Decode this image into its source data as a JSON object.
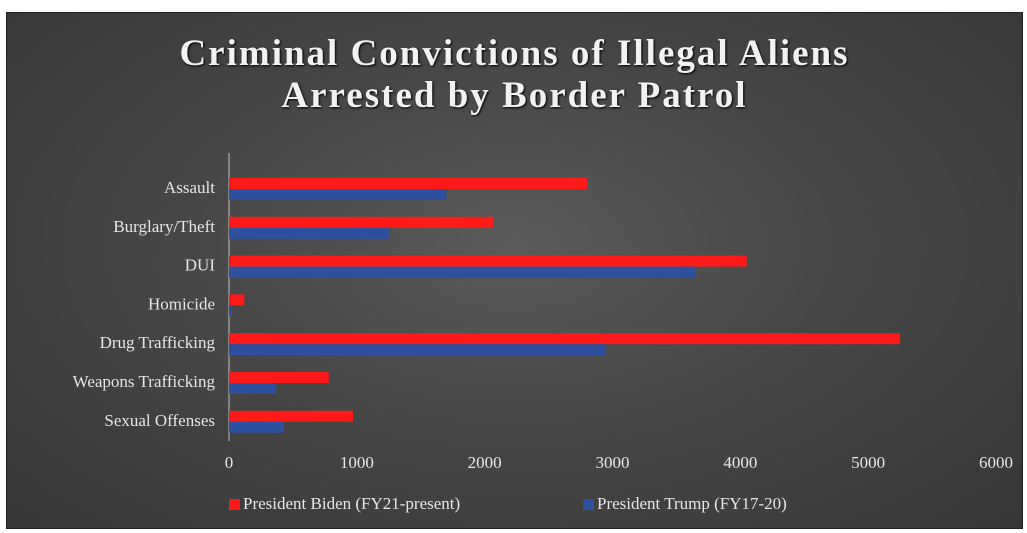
{
  "chart_data": {
    "type": "bar",
    "orientation": "horizontal",
    "title_lines": [
      "Criminal Convictions of Illegal Aliens",
      "Arrested by Border Patrol"
    ],
    "categories": [
      "Assault",
      "Burglary/Theft",
      "DUI",
      "Homicide",
      "Drug Trafficking",
      "Weapons Trafficking",
      "Sexual Offenses"
    ],
    "series": [
      {
        "name": "President Biden (FY21-present)",
        "color": "#ff1a1a",
        "values": [
          2800,
          2070,
          4050,
          120,
          5250,
          780,
          970
        ]
      },
      {
        "name": "President Trump (FY17-20)",
        "color": "#2f4f9f",
        "values": [
          1700,
          1250,
          3650,
          20,
          2950,
          370,
          430
        ]
      }
    ],
    "xlim": [
      0,
      6000
    ],
    "xticks": [
      0,
      1000,
      2000,
      3000,
      4000,
      5000,
      6000
    ],
    "grid": false,
    "legend_position": "bottom"
  }
}
